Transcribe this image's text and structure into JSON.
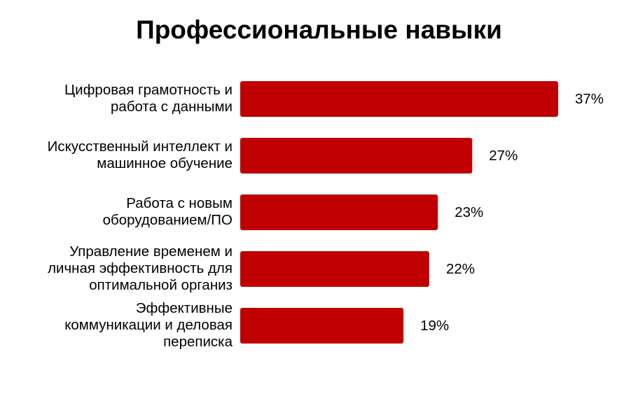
{
  "chart_data": {
    "type": "bar",
    "orientation": "horizontal",
    "title": "Профессиональные навыки",
    "categories": [
      "Цифровая грамотность и\nработа с данными",
      "Искусственный интеллект и\nмашинное обучение",
      "Работа с новым\nоборудованием/ПО",
      "Управление временем и\nличная эффективность для\nоптимальной организ",
      "Эффективные\nкоммуникации и деловая\nпереписка"
    ],
    "values": [
      37,
      27,
      23,
      22,
      19
    ],
    "data_labels": [
      "37%",
      "27%",
      "23%",
      "22%",
      "19%"
    ],
    "xlabel": "",
    "ylabel": "",
    "grid": false,
    "bar_color": "#C00000"
  }
}
